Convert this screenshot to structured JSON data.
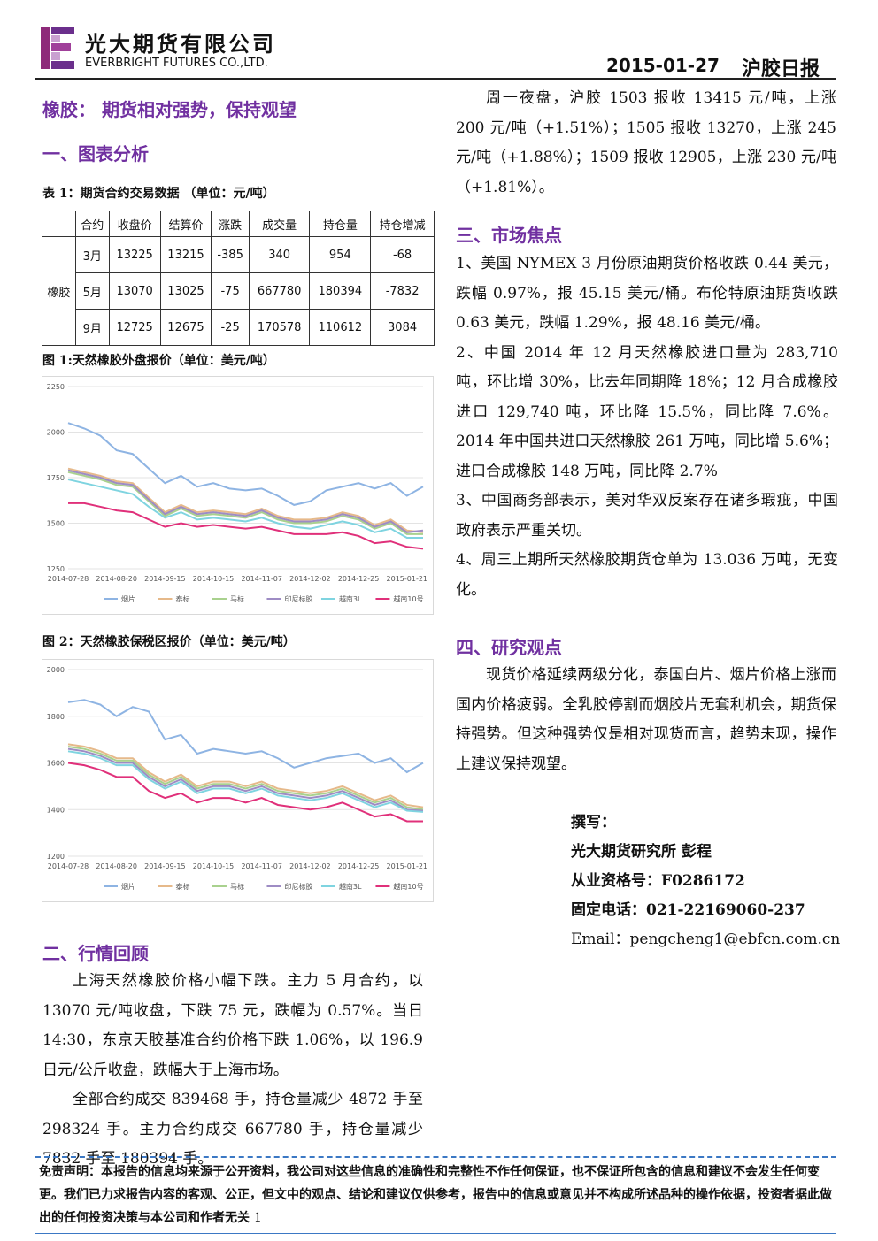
{
  "header": {
    "company_cn": "光大期货有限公司",
    "company_en": "EVERBRIGHT FUTURES CO.,LTD.",
    "date": "2015-01-27",
    "report": "沪胶日报"
  },
  "headline": "橡胶： 期货相对强势，保持观望",
  "section1": {
    "title": "一、图表分析",
    "table_caption": "表 1：期货合约交易数据 （单位：元/吨）"
  },
  "table": {
    "header": [
      "合约",
      "收盘价",
      "结算价",
      "涨跌",
      "成交量",
      "持仓量",
      "持仓增减"
    ],
    "group": "橡胶",
    "rows": [
      [
        "3月",
        13225,
        13215,
        -385,
        340,
        954,
        -68
      ],
      [
        "5月",
        13070,
        13025,
        -75,
        667780,
        180394,
        -7832
      ],
      [
        "9月",
        12725,
        12675,
        -25,
        170578,
        110612,
        3084
      ]
    ]
  },
  "chart_data": [
    {
      "type": "line",
      "title": "图 1:天然橡胶外盘报价（单位：美元/吨）",
      "categories": [
        "2014-07-28",
        null,
        null,
        "2014-08-20",
        null,
        null,
        "2014-09-15",
        null,
        null,
        "2014-10-15",
        null,
        null,
        "2014-11-07",
        null,
        null,
        "2014-12-02",
        null,
        null,
        "2014-12-25",
        null,
        null,
        "2015-01-21",
        null
      ],
      "ylim": [
        1250,
        2250
      ],
      "yticks": [
        1250,
        1500,
        1750,
        2000,
        2250
      ],
      "grid": true,
      "series": [
        {
          "name": "烟片",
          "color": "#8eb4e3",
          "values": [
            2050,
            2020,
            1980,
            1900,
            1880,
            1800,
            1720,
            1760,
            1700,
            1720,
            1690,
            1680,
            1690,
            1650,
            1600,
            1620,
            1680,
            1700,
            1720,
            1690,
            1720,
            1650,
            1700
          ]
        },
        {
          "name": "泰标",
          "color": "#e6b98a",
          "values": [
            1800,
            1780,
            1760,
            1730,
            1720,
            1640,
            1560,
            1600,
            1560,
            1570,
            1560,
            1550,
            1580,
            1540,
            1520,
            1520,
            1530,
            1560,
            1540,
            1490,
            1520,
            1460,
            1450
          ]
        },
        {
          "name": "马标",
          "color": "#a9d18e",
          "values": [
            1780,
            1760,
            1740,
            1710,
            1700,
            1620,
            1540,
            1580,
            1540,
            1550,
            1540,
            1530,
            1560,
            1520,
            1500,
            1500,
            1510,
            1540,
            1520,
            1470,
            1500,
            1440,
            1440
          ]
        },
        {
          "name": "印尼标胶",
          "color": "#9e8cc4",
          "values": [
            1790,
            1770,
            1750,
            1720,
            1710,
            1630,
            1550,
            1590,
            1550,
            1560,
            1550,
            1540,
            1570,
            1530,
            1510,
            1510,
            1520,
            1550,
            1530,
            1480,
            1510,
            1450,
            1460
          ]
        },
        {
          "name": "越南3L",
          "color": "#7fd4e0",
          "values": [
            1740,
            1720,
            1700,
            1680,
            1660,
            1590,
            1530,
            1560,
            1520,
            1530,
            1520,
            1510,
            1530,
            1500,
            1480,
            1470,
            1490,
            1510,
            1490,
            1450,
            1470,
            1420,
            1420
          ]
        },
        {
          "name": "越南10号",
          "color": "#e0307a",
          "values": [
            1610,
            1610,
            1590,
            1570,
            1560,
            1520,
            1480,
            1500,
            1480,
            1490,
            1480,
            1470,
            1480,
            1460,
            1440,
            1440,
            1440,
            1450,
            1430,
            1390,
            1400,
            1370,
            1360
          ]
        }
      ]
    },
    {
      "type": "line",
      "title": "图 2：天然橡胶保税区报价（单位：美元/吨）",
      "categories": [
        "2014-07-28",
        null,
        null,
        "2014-08-20",
        null,
        null,
        "2014-09-15",
        null,
        null,
        "2014-10-15",
        null,
        null,
        "2014-11-07",
        null,
        null,
        "2014-12-02",
        null,
        null,
        "2014-12-25",
        null,
        null,
        "2015-01-21",
        null
      ],
      "ylim": [
        1200,
        2000
      ],
      "yticks": [
        1200,
        1400,
        1600,
        1800,
        2000
      ],
      "grid": true,
      "series": [
        {
          "name": "烟片",
          "color": "#8eb4e3",
          "values": [
            1860,
            1870,
            1850,
            1800,
            1840,
            1820,
            1700,
            1720,
            1640,
            1660,
            1650,
            1640,
            1650,
            1620,
            1580,
            1600,
            1620,
            1630,
            1640,
            1600,
            1620,
            1560,
            1600
          ]
        },
        {
          "name": "泰标",
          "color": "#e6b98a",
          "values": [
            1680,
            1670,
            1650,
            1620,
            1620,
            1560,
            1520,
            1550,
            1500,
            1520,
            1520,
            1500,
            1520,
            1490,
            1480,
            1470,
            1480,
            1500,
            1470,
            1440,
            1460,
            1420,
            1410
          ]
        },
        {
          "name": "马标",
          "color": "#a9d18e",
          "values": [
            1670,
            1660,
            1640,
            1610,
            1610,
            1550,
            1510,
            1540,
            1490,
            1510,
            1510,
            1490,
            1510,
            1480,
            1470,
            1460,
            1470,
            1490,
            1460,
            1430,
            1450,
            1410,
            1400
          ]
        },
        {
          "name": "印尼标胶",
          "color": "#9e8cc4",
          "values": [
            1660,
            1650,
            1630,
            1600,
            1600,
            1540,
            1500,
            1530,
            1480,
            1500,
            1500,
            1480,
            1500,
            1470,
            1460,
            1450,
            1460,
            1480,
            1450,
            1420,
            1440,
            1400,
            1395
          ]
        },
        {
          "name": "越南3L",
          "color": "#7fd4e0",
          "values": [
            1650,
            1640,
            1620,
            1590,
            1590,
            1530,
            1490,
            1520,
            1470,
            1490,
            1490,
            1470,
            1490,
            1460,
            1450,
            1440,
            1450,
            1470,
            1440,
            1410,
            1430,
            1395,
            1390
          ]
        },
        {
          "name": "越南10号",
          "color": "#e0307a",
          "values": [
            1600,
            1590,
            1570,
            1540,
            1540,
            1480,
            1450,
            1470,
            1430,
            1450,
            1450,
            1430,
            1450,
            1420,
            1410,
            1400,
            1410,
            1430,
            1400,
            1370,
            1380,
            1350,
            1350
          ]
        }
      ]
    }
  ],
  "section2": {
    "title": "二、行情回顾",
    "paragraphs": [
      "上海天然橡胶价格小幅下跌。主力 5 月合约，以 13070 元/吨收盘，下跌 75 元，跌幅为 0.57%。当日 14:30，东京天胶基准合约价格下跌 1.06%，以 196.9 日元/公斤收盘，跌幅大于上海市场。",
      "全部合约成交 839468 手，持仓量减少 4872 手至 298324 手。主力合约成交 667780 手，持仓量减少 7832 手至 180394 手。"
    ]
  },
  "night": "周一夜盘，沪胶 1503 报收 13415 元/吨，上涨 200 元/吨（+1.51%）；1505 报收 13270，上涨 245 元/吨（+1.88%）；1509 报收 12905，上涨 230 元/吨（+1.81%）。",
  "section3": {
    "title": "三、市场焦点",
    "items": [
      "1、美国 NYMEX 3 月份原油期货价格收跌 0.44 美元，跌幅 0.97%，报 45.15 美元/桶。布伦特原油期货收跌 0.63 美元，跌幅 1.29%，报 48.16 美元/桶。",
      "2、中国 2014 年 12 月天然橡胶进口量为 283,710 吨，环比增 30%，比去年同期降 18%；12 月合成橡胶进口 129,740 吨，环比降 15.5%，同比降 7.6%。2014 年中国共进口天然橡胶 261 万吨，同比增 5.6%；进口合成橡胶 148 万吨，同比降 2.7%",
      "3、中国商务部表示，美对华双反案存在诸多瑕疵，中国政府表示严重关切。",
      "4、周三上期所天然橡胶期货仓单为 13.036 万吨，无变化。"
    ]
  },
  "section4": {
    "title": "四、研究观点",
    "paragraph": "现货价格延续两级分化，泰国白片、烟片价格上涨而国内价格疲弱。全乳胶停割而烟胶片无套利机会，期货保持强势。但这种强势仅是相对现货而言，趋势未现，操作上建议保持观望。"
  },
  "author": {
    "label": "撰写：",
    "name": "光大期货研究所 彭程",
    "license": "从业资格号：F0286172",
    "phone": "固定电话：021-22169060-237",
    "email": "Email：pengcheng1@ebfcn.com.cn"
  },
  "footer": {
    "disclaimer": "免责声明：本报告的信息均来源于公开资料，我公司对这些信息的准确性和完整性不作任何保证，也不保证所包含的信息和建议不会发生任何变更。我们已力求报告内容的客观、公正，但文中的观点、结论和建议仅供参考，报告中的信息或意见并不构成所述品种的操作依据，投资者据此做出的任何投资决策与本公司和作者无关",
    "page": 1
  }
}
